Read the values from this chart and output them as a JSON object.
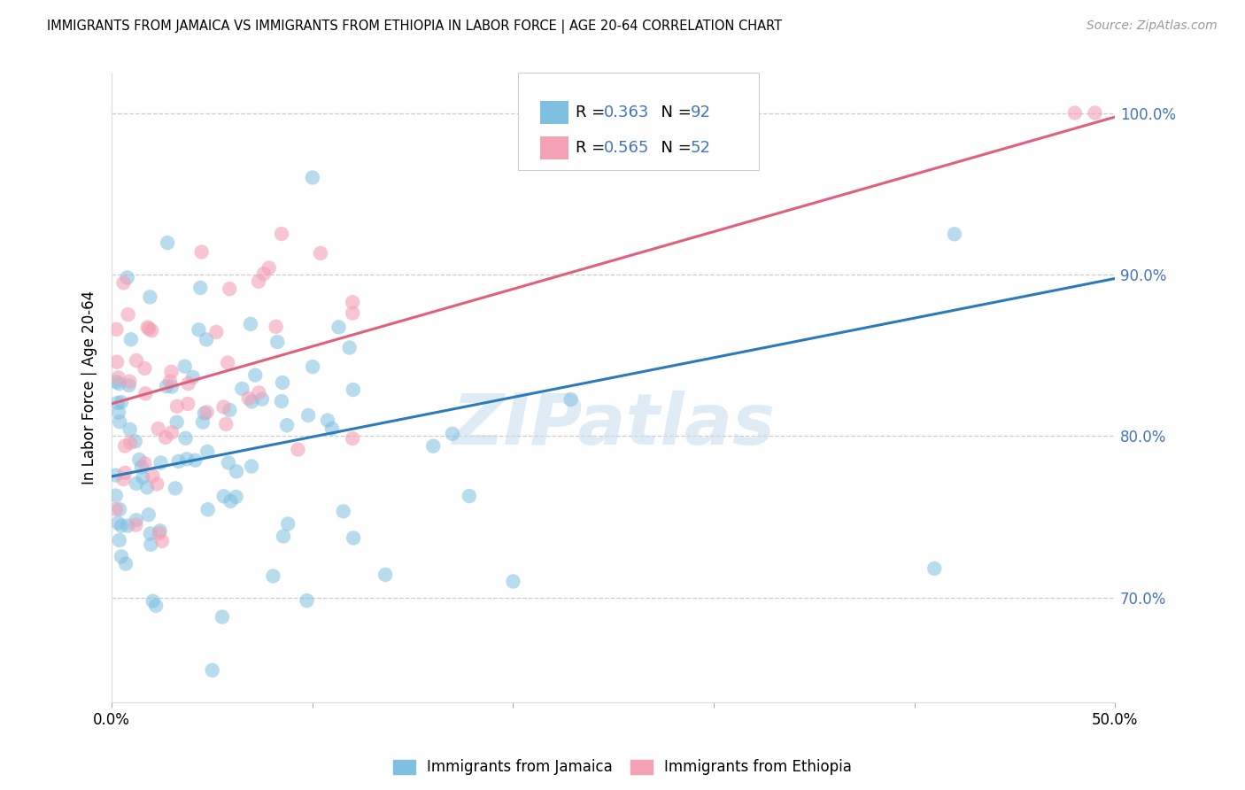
{
  "title": "IMMIGRANTS FROM JAMAICA VS IMMIGRANTS FROM ETHIOPIA IN LABOR FORCE | AGE 20-64 CORRELATION CHART",
  "source": "Source: ZipAtlas.com",
  "ylabel": "In Labor Force | Age 20-64",
  "xlim": [
    0.0,
    0.5
  ],
  "ylim": [
    0.635,
    1.025
  ],
  "yticks": [
    0.7,
    0.8,
    0.9,
    1.0
  ],
  "yticklabels": [
    "70.0%",
    "80.0%",
    "90.0%",
    "100.0%"
  ],
  "xticks": [
    0.0,
    0.1,
    0.2,
    0.3,
    0.4,
    0.5
  ],
  "xticklabels": [
    "0.0%",
    "",
    "",
    "",
    "",
    "50.0%"
  ],
  "jamaica_color": "#7fbfdf",
  "ethiopia_color": "#f4a0b5",
  "jamaica_line_color": "#2b7bba",
  "ethiopia_line_color": "#e0607a",
  "jamaica_R": 0.363,
  "jamaica_N": 92,
  "ethiopia_R": 0.565,
  "ethiopia_N": 52,
  "watermark": "ZIPatlas",
  "legend_jamaica": "Immigrants from Jamaica",
  "legend_ethiopia": "Immigrants from Ethiopia",
  "jamaica_intercept": 0.775,
  "jamaica_slope": 0.245,
  "ethiopia_intercept": 0.82,
  "ethiopia_slope": 0.355
}
